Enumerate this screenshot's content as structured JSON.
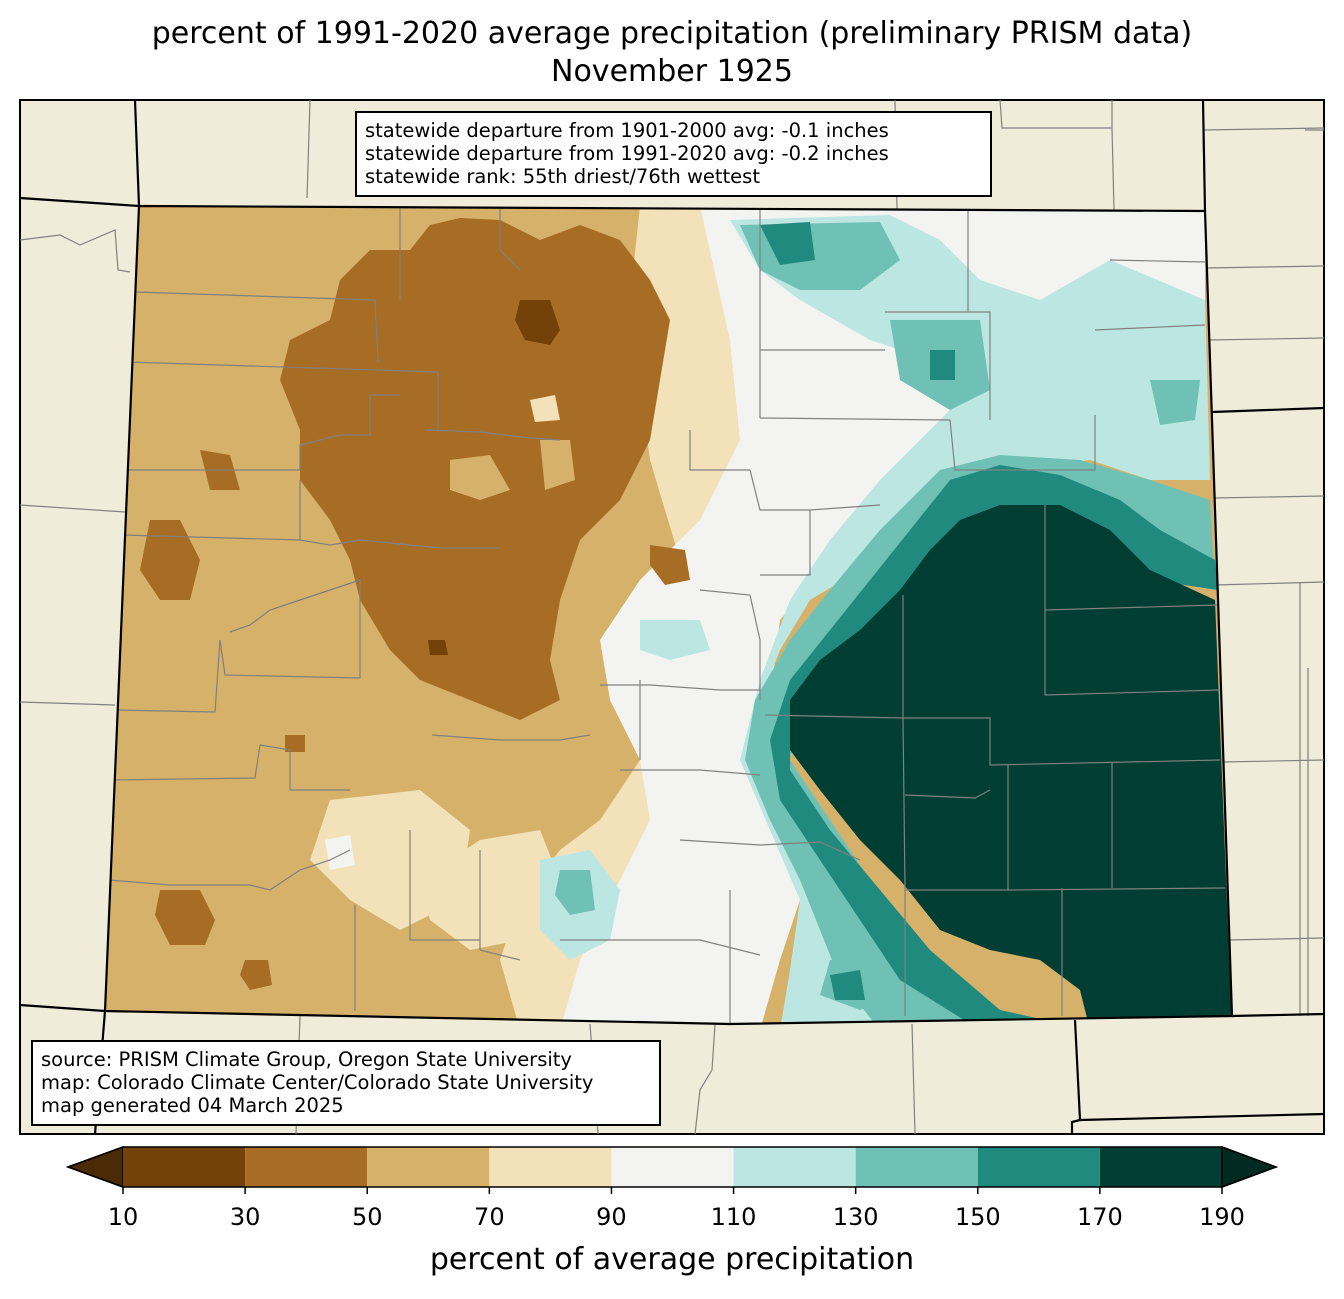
{
  "title": {
    "line1": "percent of 1991-2020 average precipitation (preliminary PRISM data)",
    "line2": "November 1925"
  },
  "stats": {
    "line1": "statewide departure from 1901-2000 avg: -0.1 inches",
    "line2": "statewide departure from 1991-2020 avg: -0.2 inches",
    "line3": "statewide rank: 55th driest/76th wettest"
  },
  "credits": {
    "line1": "source: PRISM Climate Group, Oregon State University",
    "line2": "map: Colorado Climate Center/Colorado State University",
    "line3": "map generated 04 March 2025"
  },
  "colorbar": {
    "label": "percent of average precipitation",
    "ticks": [
      "10",
      "30",
      "50",
      "70",
      "90",
      "110",
      "130",
      "150",
      "170",
      "190"
    ],
    "colors": [
      "#4a2b05",
      "#744208",
      "#a86d24",
      "#d6b16a",
      "#f3e2b9",
      "#f3f4f2",
      "#bce6e1",
      "#6fc0b5",
      "#218a7f",
      "#003d33",
      "#002a22"
    ]
  },
  "colors": {
    "land_outside": "#efecda",
    "state_border": "#000000",
    "county_border": "#808080"
  }
}
